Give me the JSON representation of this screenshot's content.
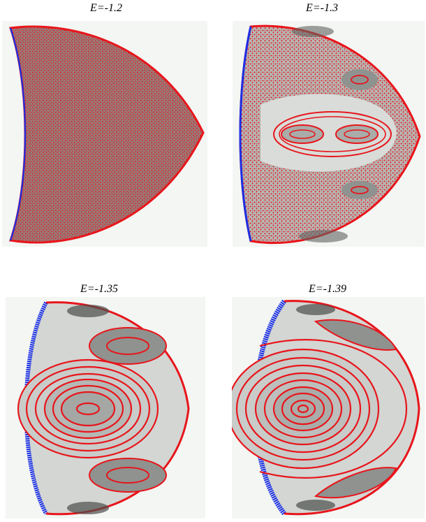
{
  "figure": {
    "panels": [
      {
        "id": "p1",
        "title": "E=-1.2",
        "regime": "chaotic",
        "islands": []
      },
      {
        "id": "p2",
        "title": "E=-1.3",
        "regime": "mixed",
        "islands": [
          "center-double",
          "upper-right",
          "lower-right"
        ]
      },
      {
        "id": "p3",
        "title": "E=-1.35",
        "regime": "mostly-regular",
        "islands": [
          "center",
          "upper",
          "lower"
        ]
      },
      {
        "id": "p4",
        "title": "E=-1.39",
        "regime": "regular",
        "islands": [
          "center",
          "upper",
          "lower"
        ]
      }
    ],
    "colors": {
      "orbit_points": "#e8151b",
      "boundary": "#1b2fe6",
      "surface_light": "#d9dcd9",
      "surface_dark": "#7f827f",
      "background": "#f3f6f3"
    }
  }
}
